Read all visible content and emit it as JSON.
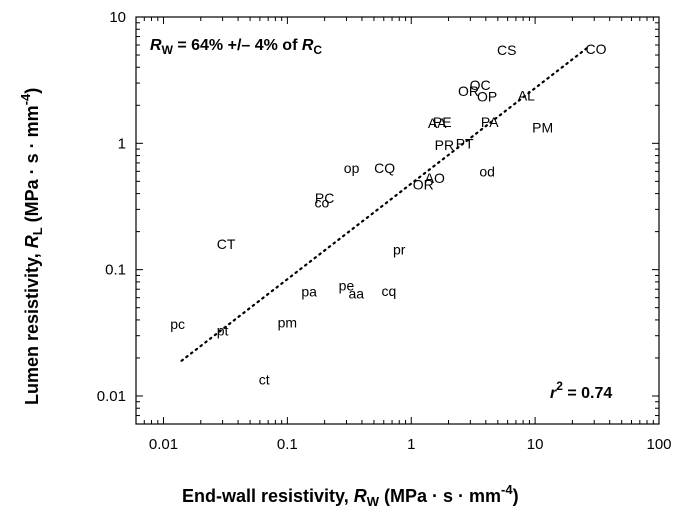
{
  "chart_data": {
    "type": "scatter",
    "xscale": "log",
    "yscale": "log",
    "xlim": [
      0.006,
      100
    ],
    "ylim": [
      0.006,
      10
    ],
    "x_ticks": [
      0.01,
      0.1,
      1,
      10,
      100
    ],
    "x_tick_labels": [
      "0.01",
      "0.1",
      "1",
      "10",
      "100"
    ],
    "y_ticks": [
      0.01,
      0.1,
      1,
      10
    ],
    "y_tick_labels": [
      "0.01",
      "0.1",
      "1",
      "10"
    ],
    "xlabel": {
      "prefix": "End-wall resistivity, ",
      "var": "R",
      "sub": "W",
      "units": "  (MPa · s · mm",
      "exp": "-4",
      "close": ")"
    },
    "ylabel": {
      "prefix": "Lumen resistivity, ",
      "var": "R",
      "sub": "L",
      "units": "  (MPa · s · mm",
      "exp": "-4",
      "close": ")"
    },
    "annotation_top": {
      "var1": "R",
      "sub1": "W",
      "mid": " = 64% +/–  4% of ",
      "var2": "R",
      "sub2": "C"
    },
    "annotation_r2": {
      "var": "r",
      "exp": "2",
      "rest": " = 0.74"
    },
    "grid": false,
    "series": [
      {
        "points": [
          {
            "label": "pc",
            "x": 0.013,
            "y": 0.037
          },
          {
            "label": "pt",
            "x": 0.03,
            "y": 0.033
          },
          {
            "label": "CT",
            "x": 0.032,
            "y": 0.16
          },
          {
            "label": "ct",
            "x": 0.065,
            "y": 0.0135
          },
          {
            "label": "pm",
            "x": 0.1,
            "y": 0.038
          },
          {
            "label": "pa",
            "x": 0.15,
            "y": 0.067
          },
          {
            "label": "co",
            "x": 0.19,
            "y": 0.34
          },
          {
            "label": "PC",
            "x": 0.2,
            "y": 0.37
          },
          {
            "label": "pe",
            "x": 0.3,
            "y": 0.075
          },
          {
            "label": "aa",
            "x": 0.36,
            "y": 0.065
          },
          {
            "label": "op",
            "x": 0.33,
            "y": 0.64
          },
          {
            "label": "CQ",
            "x": 0.61,
            "y": 0.64
          },
          {
            "label": "cq",
            "x": 0.66,
            "y": 0.068
          },
          {
            "label": "pr",
            "x": 0.8,
            "y": 0.145
          },
          {
            "label": "OR",
            "x": 1.25,
            "y": 0.47
          },
          {
            "label": "AO",
            "x": 1.55,
            "y": 0.53
          },
          {
            "label": "AA",
            "x": 1.62,
            "y": 1.45
          },
          {
            "label": "PE",
            "x": 1.78,
            "y": 1.47
          },
          {
            "label": "PR",
            "x": 1.85,
            "y": 0.97
          },
          {
            "label": "PT",
            "x": 2.7,
            "y": 1.0
          },
          {
            "label": "OR",
            "x": 2.9,
            "y": 2.6
          },
          {
            "label": "OC",
            "x": 3.6,
            "y": 2.9
          },
          {
            "label": "OP",
            "x": 4.1,
            "y": 2.35
          },
          {
            "label": "PA",
            "x": 4.3,
            "y": 1.47
          },
          {
            "label": "od",
            "x": 4.1,
            "y": 0.6
          },
          {
            "label": "CS",
            "x": 5.9,
            "y": 5.5
          },
          {
            "label": "AL",
            "x": 8.5,
            "y": 2.4
          },
          {
            "label": "PM",
            "x": 11.5,
            "y": 1.33
          },
          {
            "label": "CO",
            "x": 31.0,
            "y": 5.6
          }
        ]
      }
    ],
    "fit_line": {
      "x": [
        0.014,
        27.0
      ],
      "y": [
        0.019,
        5.8
      ],
      "style": "dotted"
    }
  }
}
